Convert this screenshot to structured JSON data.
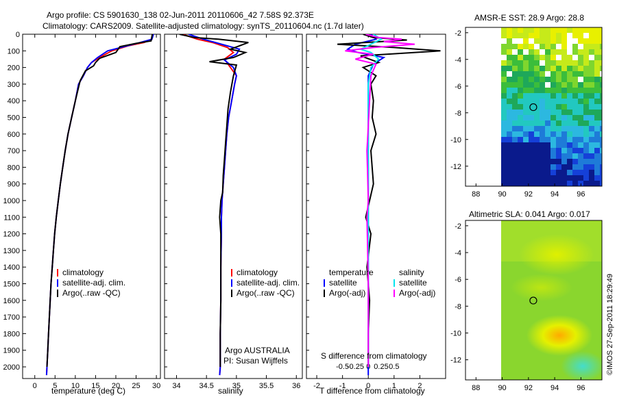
{
  "header": {
    "title_line1": "Argo profile: CS 5901630_138 02-Jun-2011 20110606_42 7.58S 92.373E",
    "title_line2": "Climatology: CARS2009. Satellite-adjusted climatology: synTS_20110604.nc (1.7d later)"
  },
  "footer": {
    "credit": "©IMOS 27-Sep-2011 18:29:49"
  },
  "colors": {
    "climatology": "#ff0000",
    "satellite": "#0000ff",
    "argo": "#000000",
    "salinity_satellite": "#00e5ee",
    "salinity_argo": "#ff00ff"
  },
  "chart_data": [
    {
      "type": "line",
      "xlabel": "temperature (deg C)",
      "ylabel": "",
      "xlim": [
        -3,
        31
      ],
      "ylim": [
        2070,
        0
      ],
      "xticks": [
        0,
        5,
        10,
        15,
        20,
        25,
        30
      ],
      "yticks": [
        0,
        100,
        200,
        300,
        400,
        500,
        600,
        700,
        800,
        900,
        1000,
        1100,
        1200,
        1300,
        1400,
        1500,
        1600,
        1700,
        1800,
        1900,
        2000
      ],
      "legend": [
        "climatology",
        "satellite-adj. clim.",
        "Argo(..raw -QC)"
      ],
      "series": [
        {
          "name": "climatology",
          "color": "#ff0000",
          "points": [
            [
              29.2,
              0
            ],
            [
              28.8,
              30
            ],
            [
              27,
              50
            ],
            [
              23,
              70
            ],
            [
              19,
              100
            ],
            [
              16,
              140
            ],
            [
              14,
              170
            ],
            [
              13,
              200
            ],
            [
              12,
              250
            ],
            [
              10.8,
              300
            ],
            [
              10,
              400
            ],
            [
              9.1,
              500
            ],
            [
              8.2,
              600
            ],
            [
              7.5,
              700
            ],
            [
              6.9,
              800
            ],
            [
              6.3,
              900
            ],
            [
              5.8,
              1000
            ],
            [
              5.3,
              1100
            ],
            [
              4.9,
              1200
            ],
            [
              4.6,
              1300
            ],
            [
              4.3,
              1400
            ],
            [
              4.0,
              1500
            ],
            [
              3.8,
              1600
            ],
            [
              3.6,
              1700
            ],
            [
              3.4,
              1800
            ],
            [
              3.2,
              1900
            ],
            [
              3.0,
              2000
            ],
            [
              2.9,
              2050
            ]
          ]
        },
        {
          "name": "satellite-adj. clim.",
          "color": "#0000ff",
          "points": [
            [
              29.3,
              0
            ],
            [
              28.9,
              30
            ],
            [
              26,
              50
            ],
            [
              22,
              75
            ],
            [
              18,
              100
            ],
            [
              15.5,
              140
            ],
            [
              14,
              170
            ],
            [
              13,
              200
            ],
            [
              12,
              250
            ],
            [
              10.8,
              300
            ],
            [
              10,
              400
            ],
            [
              9.1,
              500
            ],
            [
              8.2,
              600
            ],
            [
              7.5,
              700
            ],
            [
              6.9,
              800
            ],
            [
              6.3,
              900
            ],
            [
              5.8,
              1000
            ],
            [
              5.3,
              1100
            ],
            [
              4.9,
              1200
            ],
            [
              4.6,
              1300
            ],
            [
              4.3,
              1400
            ],
            [
              4.0,
              1500
            ],
            [
              3.8,
              1600
            ],
            [
              3.6,
              1700
            ],
            [
              3.4,
              1800
            ],
            [
              3.2,
              1900
            ],
            [
              3.0,
              2000
            ],
            [
              2.9,
              2050
            ]
          ]
        },
        {
          "name": "Argo(..raw -QC)",
          "color": "#000000",
          "points": [
            [
              29.0,
              0
            ],
            [
              28.7,
              40
            ],
            [
              25,
              55
            ],
            [
              21,
              75
            ],
            [
              20,
              110
            ],
            [
              16,
              145
            ],
            [
              15,
              170
            ],
            [
              14.5,
              190
            ],
            [
              12.5,
              220
            ],
            [
              11.2,
              280
            ],
            [
              10.5,
              350
            ],
            [
              10,
              400
            ],
            [
              9.1,
              500
            ],
            [
              8.2,
              600
            ],
            [
              7.5,
              700
            ],
            [
              6.9,
              800
            ],
            [
              6.3,
              900
            ],
            [
              5.8,
              1000
            ],
            [
              5.3,
              1100
            ],
            [
              4.9,
              1200
            ],
            [
              4.6,
              1300
            ],
            [
              4.3,
              1400
            ],
            [
              4.0,
              1500
            ],
            [
              3.8,
              1600
            ],
            [
              3.6,
              1700
            ],
            [
              3.4,
              1800
            ],
            [
              3.2,
              1900
            ],
            [
              3.0,
              2000
            ]
          ]
        }
      ]
    },
    {
      "type": "line",
      "xlabel": "salinity",
      "xlim": [
        33.8,
        36.1
      ],
      "ylim": [
        2070,
        0
      ],
      "xticks": [
        34,
        34.5,
        35,
        35.5,
        36
      ],
      "legend": [
        "climatology",
        "satellite-adj. clim.",
        "Argo(..raw -QC)"
      ],
      "annotation_line1": "Argo AUSTRALIA",
      "annotation_line2": "PI: Susan Wijffels",
      "series": [
        {
          "name": "climatology",
          "color": "#ff0000",
          "points": [
            [
              34.1,
              0
            ],
            [
              34.35,
              30
            ],
            [
              34.6,
              50
            ],
            [
              34.85,
              80
            ],
            [
              34.95,
              110
            ],
            [
              34.8,
              150
            ],
            [
              34.9,
              200
            ],
            [
              35.0,
              250
            ],
            [
              34.97,
              300
            ],
            [
              34.92,
              400
            ],
            [
              34.87,
              500
            ],
            [
              34.84,
              600
            ],
            [
              34.82,
              700
            ],
            [
              34.8,
              800
            ],
            [
              34.78,
              900
            ],
            [
              34.76,
              1000
            ],
            [
              34.75,
              1100
            ],
            [
              34.75,
              1200
            ],
            [
              34.74,
              1400
            ],
            [
              34.74,
              1600
            ],
            [
              34.73,
              1800
            ],
            [
              34.73,
              2000
            ],
            [
              34.72,
              2050
            ]
          ]
        },
        {
          "name": "satellite-adj. clim.",
          "color": "#0000ff",
          "points": [
            [
              34.2,
              0
            ],
            [
              34.45,
              30
            ],
            [
              34.7,
              55
            ],
            [
              35.05,
              90
            ],
            [
              35.0,
              120
            ],
            [
              34.8,
              155
            ],
            [
              34.95,
              200
            ],
            [
              35.0,
              250
            ],
            [
              34.97,
              300
            ],
            [
              34.92,
              400
            ],
            [
              34.87,
              500
            ],
            [
              34.84,
              600
            ],
            [
              34.82,
              700
            ],
            [
              34.8,
              800
            ],
            [
              34.78,
              900
            ],
            [
              34.76,
              1000
            ],
            [
              34.75,
              1100
            ],
            [
              34.75,
              1200
            ],
            [
              34.74,
              1400
            ],
            [
              34.74,
              1600
            ],
            [
              34.73,
              1800
            ],
            [
              34.73,
              2000
            ],
            [
              34.72,
              2050
            ]
          ]
        },
        {
          "name": "Argo(..raw -QC)",
          "color": "#000000",
          "points": [
            [
              34.05,
              0
            ],
            [
              34.3,
              20
            ],
            [
              34.7,
              30
            ],
            [
              35.2,
              50
            ],
            [
              34.9,
              90
            ],
            [
              35.15,
              110
            ],
            [
              34.95,
              140
            ],
            [
              34.55,
              165
            ],
            [
              35.0,
              185
            ],
            [
              34.95,
              250
            ],
            [
              34.9,
              350
            ],
            [
              34.86,
              450
            ],
            [
              34.84,
              550
            ],
            [
              34.82,
              650
            ],
            [
              34.8,
              750
            ],
            [
              34.78,
              850
            ],
            [
              34.77,
              950
            ],
            [
              34.74,
              1000
            ],
            [
              34.72,
              1100
            ],
            [
              34.74,
              1200
            ],
            [
              34.74,
              1400
            ],
            [
              34.74,
              1600
            ],
            [
              34.73,
              1800
            ],
            [
              34.73,
              2000
            ]
          ]
        }
      ]
    },
    {
      "type": "line",
      "xlabel": "T difference from climatology",
      "x2label": "S difference from climatology",
      "xlim": [
        -2.4,
        3.0
      ],
      "ylim": [
        2070,
        0
      ],
      "xticks": [
        -2,
        -1,
        0,
        1,
        2
      ],
      "x2ticks": [
        -0.5,
        -0.25,
        0,
        0.25,
        0.5
      ],
      "legend_left_header": "temperature",
      "legend_right_header": "salinity",
      "legend_left": [
        "satellite",
        "Argo(-adj)"
      ],
      "legend_right": [
        "satellite",
        "Argo(-adj)"
      ],
      "series": [
        {
          "name": "temperature satellite",
          "color": "#0000ff",
          "points": [
            [
              0.1,
              0
            ],
            [
              0.3,
              30
            ],
            [
              -0.5,
              60
            ],
            [
              -0.8,
              90
            ],
            [
              -0.4,
              110
            ],
            [
              0.6,
              140
            ],
            [
              0.2,
              180
            ],
            [
              0,
              250
            ],
            [
              0,
              300
            ],
            [
              0,
              400
            ],
            [
              0,
              600
            ],
            [
              0,
              900
            ],
            [
              0,
              1200
            ],
            [
              0,
              1500
            ],
            [
              0,
              1800
            ],
            [
              0,
              2050
            ]
          ]
        },
        {
          "name": "temperature Argo(-adj)",
          "color": "#000000",
          "points": [
            [
              -0.2,
              0
            ],
            [
              0.2,
              20
            ],
            [
              1.5,
              35
            ],
            [
              -1.2,
              60
            ],
            [
              1.0,
              80
            ],
            [
              2.8,
              100
            ],
            [
              -0.3,
              130
            ],
            [
              0.4,
              170
            ],
            [
              -0.2,
              200
            ],
            [
              0.3,
              250
            ],
            [
              0.1,
              300
            ],
            [
              0.2,
              400
            ],
            [
              0.15,
              500
            ],
            [
              0.3,
              600
            ],
            [
              0.1,
              700
            ],
            [
              0.2,
              900
            ],
            [
              0.05,
              1000
            ],
            [
              -0.1,
              1100
            ],
            [
              0.1,
              1200
            ],
            [
              -0.05,
              1400
            ],
            [
              0.05,
              1600
            ],
            [
              0,
              1800
            ],
            [
              0,
              2000
            ]
          ]
        },
        {
          "name": "salinity satellite",
          "color": "#00e5ee",
          "points": [
            [
              0.2,
              0
            ],
            [
              0.5,
              30
            ],
            [
              0.1,
              60
            ],
            [
              -0.3,
              90
            ],
            [
              0.1,
              110
            ],
            [
              0.4,
              150
            ],
            [
              0.1,
              200
            ],
            [
              0,
              300
            ],
            [
              0,
              500
            ],
            [
              0,
              800
            ],
            [
              0,
              1200
            ],
            [
              0,
              1600
            ],
            [
              0,
              2000
            ]
          ]
        },
        {
          "name": "salinity Argo(-adj)",
          "color": "#ff00ff",
          "points": [
            [
              -0.1,
              0
            ],
            [
              0.4,
              20
            ],
            [
              1.3,
              30
            ],
            [
              0.6,
              45
            ],
            [
              1.8,
              60
            ],
            [
              0.2,
              80
            ],
            [
              -0.9,
              100
            ],
            [
              0.2,
              120
            ],
            [
              -0.5,
              150
            ],
            [
              0.3,
              180
            ],
            [
              0.1,
              250
            ],
            [
              0.05,
              400
            ],
            [
              -0.05,
              700
            ],
            [
              0,
              1000
            ],
            [
              -0.05,
              1100
            ],
            [
              0,
              1500
            ],
            [
              0,
              2000
            ]
          ]
        }
      ]
    },
    {
      "type": "heatmap",
      "title": "AMSR-E SST: 28.9 Argo: 28.8",
      "xticks": [
        88,
        90,
        92,
        94,
        96
      ],
      "yticks": [
        -2,
        -4,
        -6,
        -8,
        -10,
        -12
      ],
      "xlim": [
        87.2,
        97.6
      ],
      "ylim": [
        -13.5,
        -1.6
      ],
      "marker": [
        92.37,
        -7.58
      ]
    },
    {
      "type": "heatmap",
      "title": "Altimetric SLA: 0.041 Argo: 0.017",
      "xticks": [
        88,
        90,
        92,
        94,
        96
      ],
      "yticks": [
        -2,
        -4,
        -6,
        -8,
        -10,
        -12
      ],
      "xlim": [
        87.2,
        97.6
      ],
      "ylim": [
        -13.5,
        -1.6
      ],
      "marker": [
        92.37,
        -7.58
      ]
    }
  ]
}
